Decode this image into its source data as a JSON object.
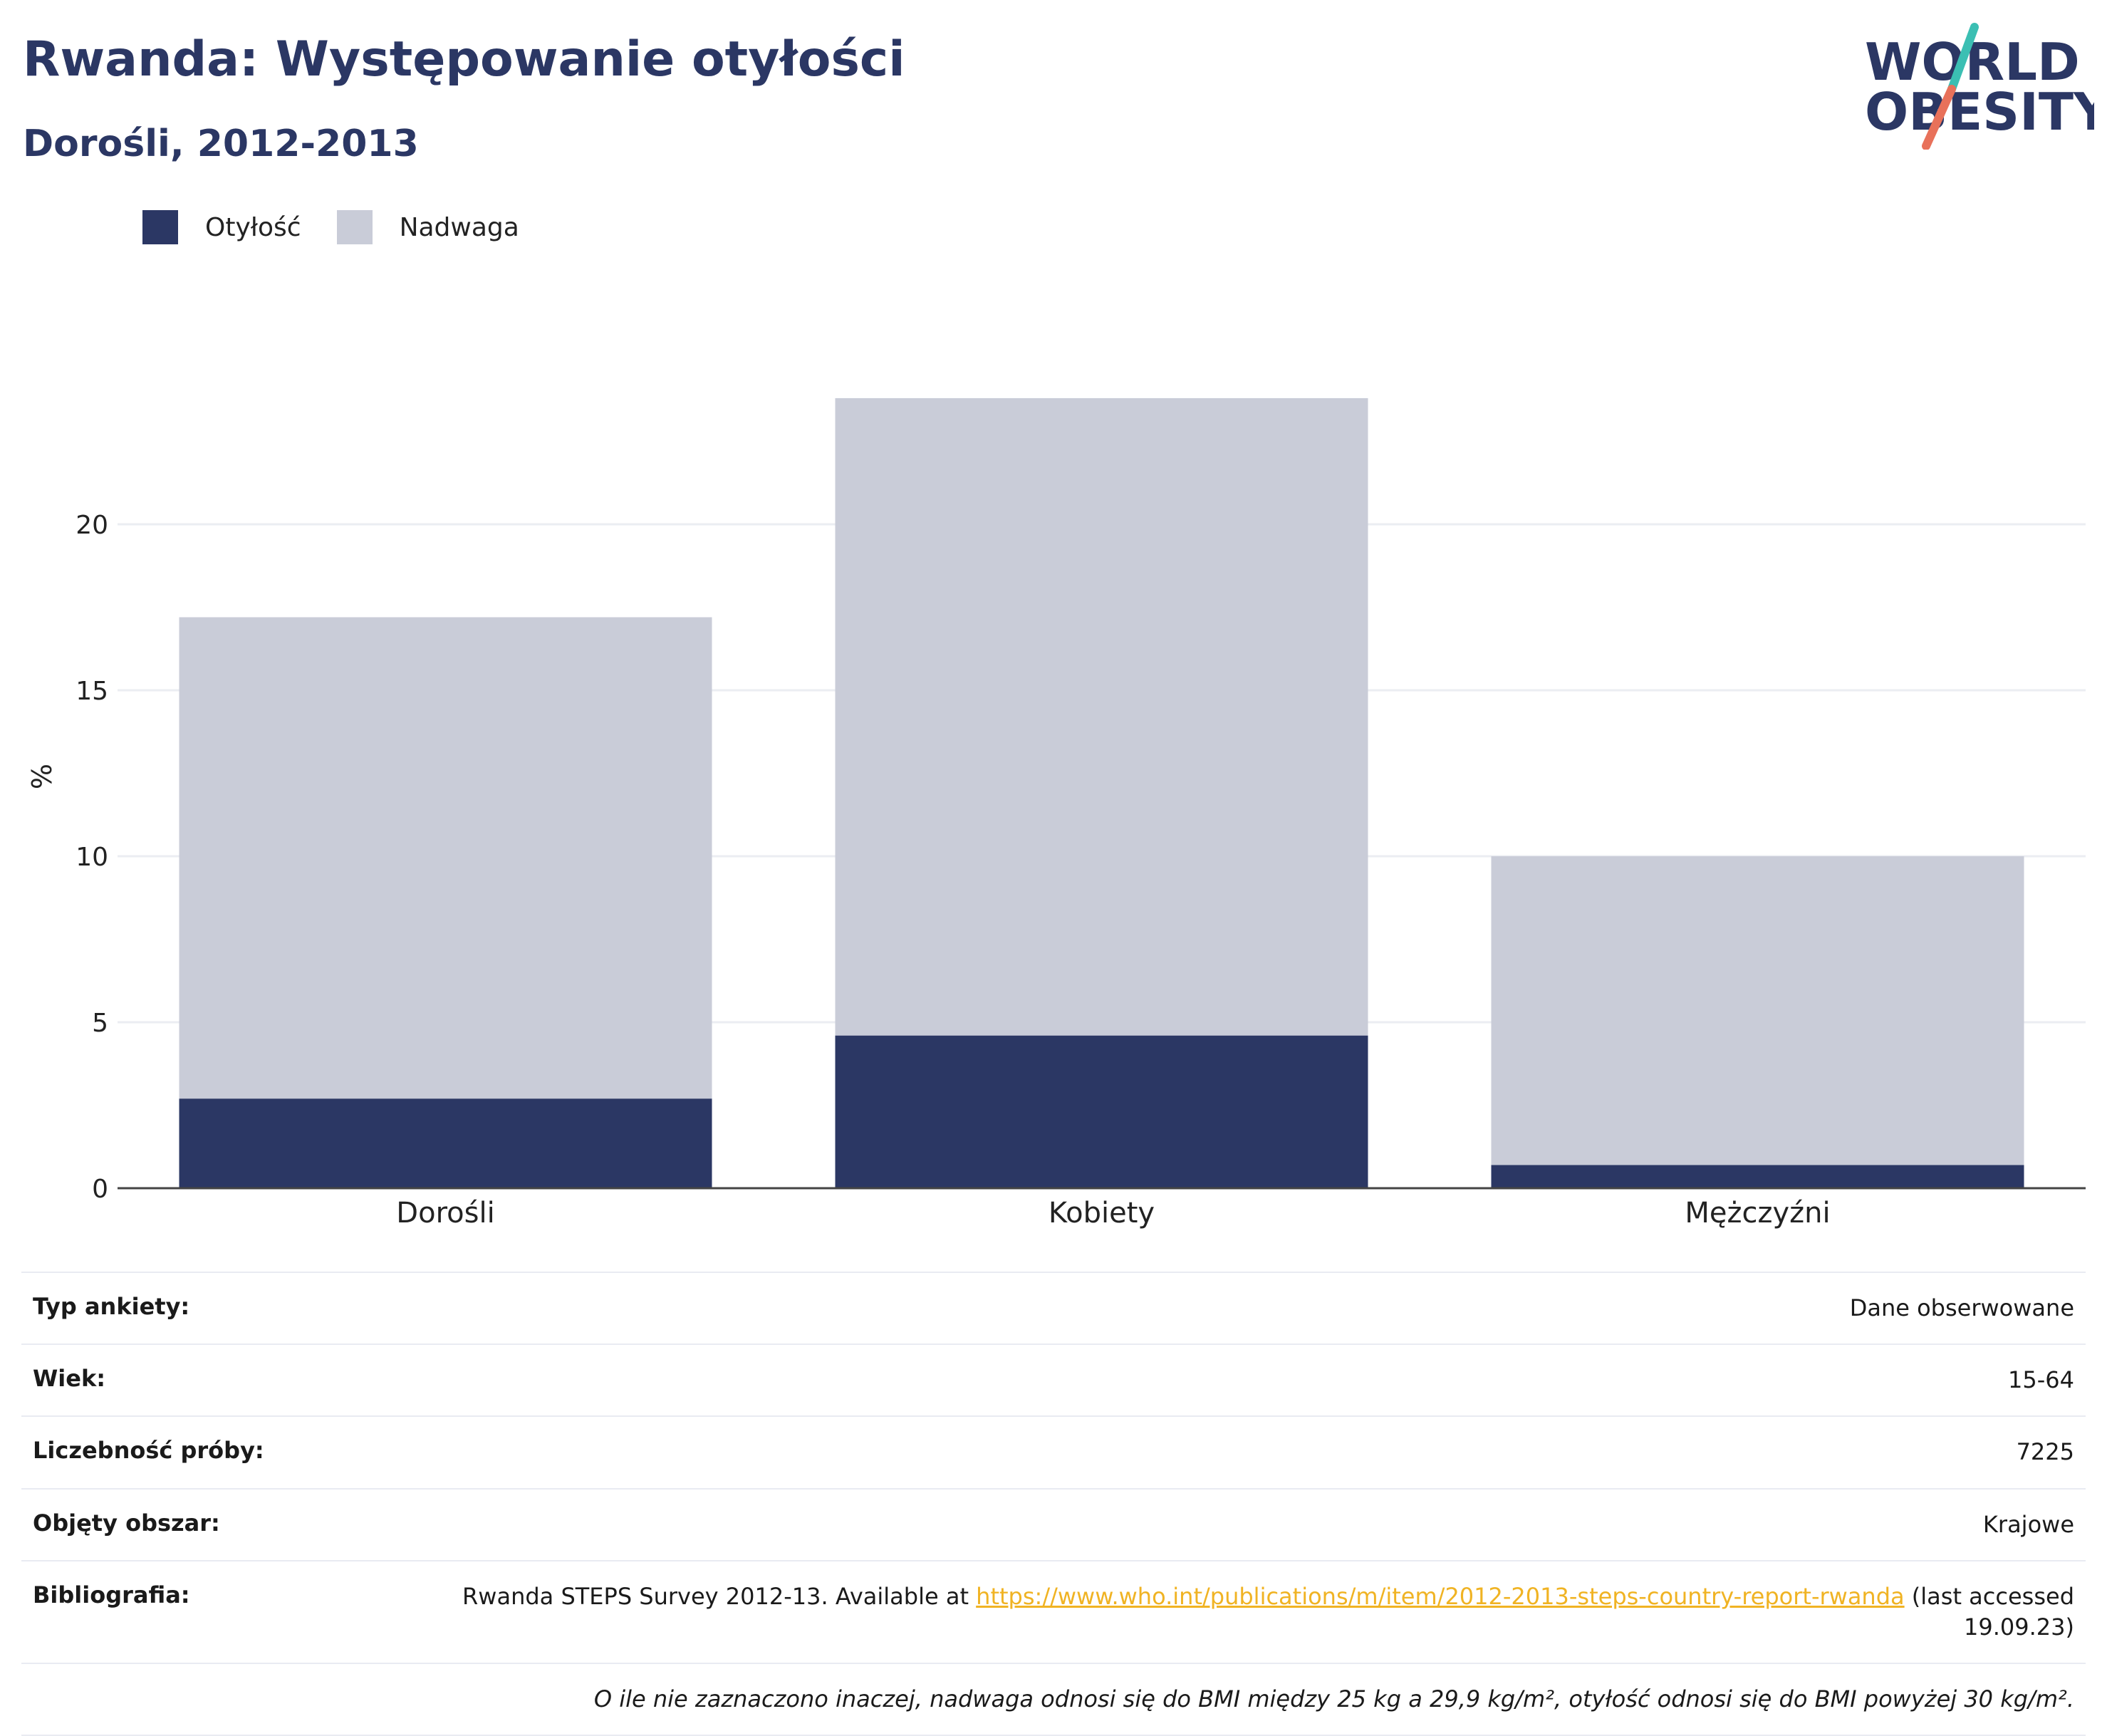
{
  "header": {
    "title": "Rwanda: Występowanie otyłości",
    "subtitle": "Dorośli, 2012-2013"
  },
  "logo": {
    "line1": "WORLD",
    "line2": "OBESITY",
    "colors": {
      "text": "#2b3764",
      "slash_top": "#3bbfb3",
      "slash_bottom": "#e8715a"
    }
  },
  "colors": {
    "obesity": "#2b3764",
    "overweight": "#c9ccd8",
    "grid": "#ebedf2",
    "axis": "#444444"
  },
  "chart_data": {
    "type": "bar",
    "stacked": true,
    "categories": [
      "Dorośli",
      "Kobiety",
      "Mężczyźni"
    ],
    "series": [
      {
        "name": "Otyłość",
        "values": [
          2.7,
          4.6,
          0.7
        ]
      },
      {
        "name": "Nadwaga",
        "values": [
          14.5,
          19.2,
          9.3
        ]
      }
    ],
    "ylabel": "%",
    "ylim": [
      0,
      26
    ],
    "yticks": [
      0,
      5,
      10,
      15,
      20
    ],
    "grid": true,
    "legend": "top-left"
  },
  "info": {
    "rows": [
      {
        "label": "Typ ankiety:",
        "value": "Dane obserwowane"
      },
      {
        "label": "Wiek:",
        "value": "15-64"
      },
      {
        "label": "Liczebność próby:",
        "value": "7225"
      },
      {
        "label": "Objęty obszar:",
        "value": "Krajowe"
      }
    ],
    "bibliography": {
      "label": "Bibliografia:",
      "prefix": "Rwanda STEPS Survey 2012-13. Available at ",
      "link": "https://www.who.int/publications/m/item/2012-2013-steps-country-report-rwanda",
      "suffix": " (last accessed 19.09.23)"
    },
    "note": "O ile nie zaznaczono inaczej, nadwaga odnosi się do BMI między 25 kg a 29,9 kg/m², otyłość odnosi się do BMI powyżej 30 kg/m²."
  }
}
